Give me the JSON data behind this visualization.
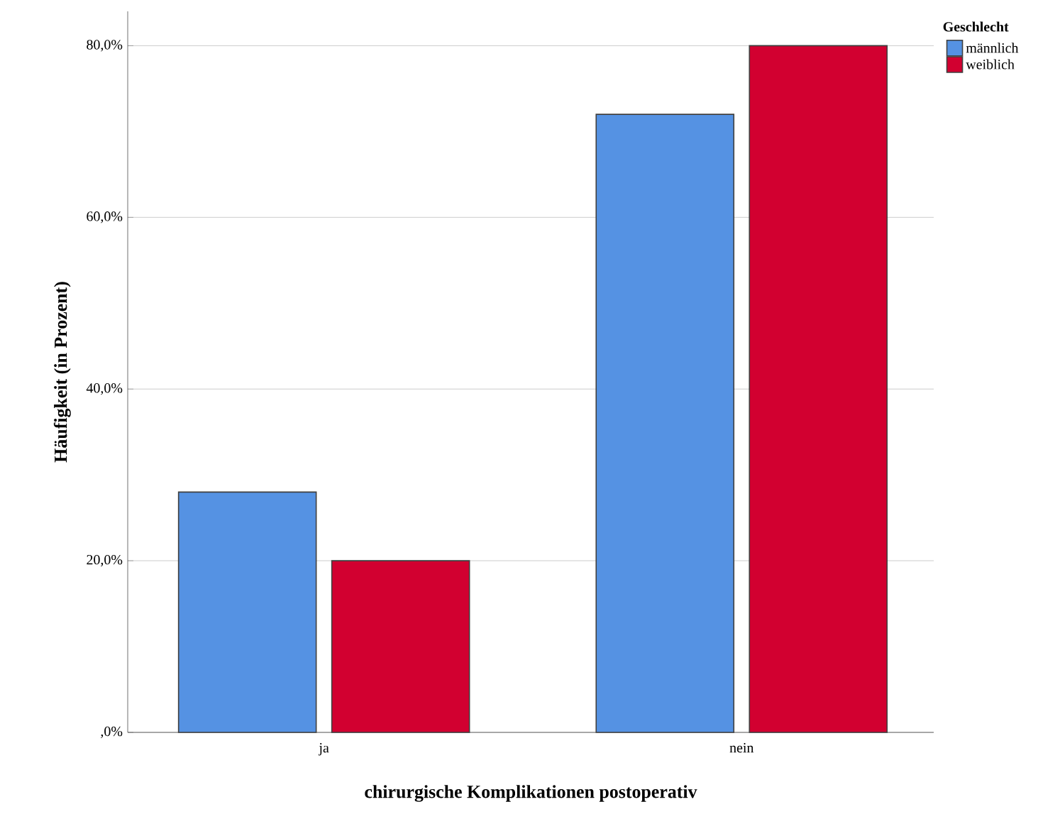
{
  "chart_data": {
    "type": "bar",
    "xlabel": "chirurgische Komplikationen postoperativ",
    "ylabel": "Häufigkeit (in Prozent)",
    "legend_title": "Geschlecht",
    "categories": [
      "ja",
      "nein"
    ],
    "series": [
      {
        "name": "männlich",
        "color": "#5592e3",
        "values": [
          28,
          72
        ]
      },
      {
        "name": "weiblich",
        "color": "#d20030",
        "values": [
          20,
          80
        ]
      }
    ],
    "ylim": [
      0,
      84
    ],
    "yticks": [
      {
        "value": 0,
        "label": ",0%"
      },
      {
        "value": 20,
        "label": "20,0%"
      },
      {
        "value": 40,
        "label": "40,0%"
      },
      {
        "value": 60,
        "label": "60,0%"
      },
      {
        "value": 80,
        "label": "80,0%"
      }
    ],
    "grid": "y",
    "legend": "top right"
  }
}
